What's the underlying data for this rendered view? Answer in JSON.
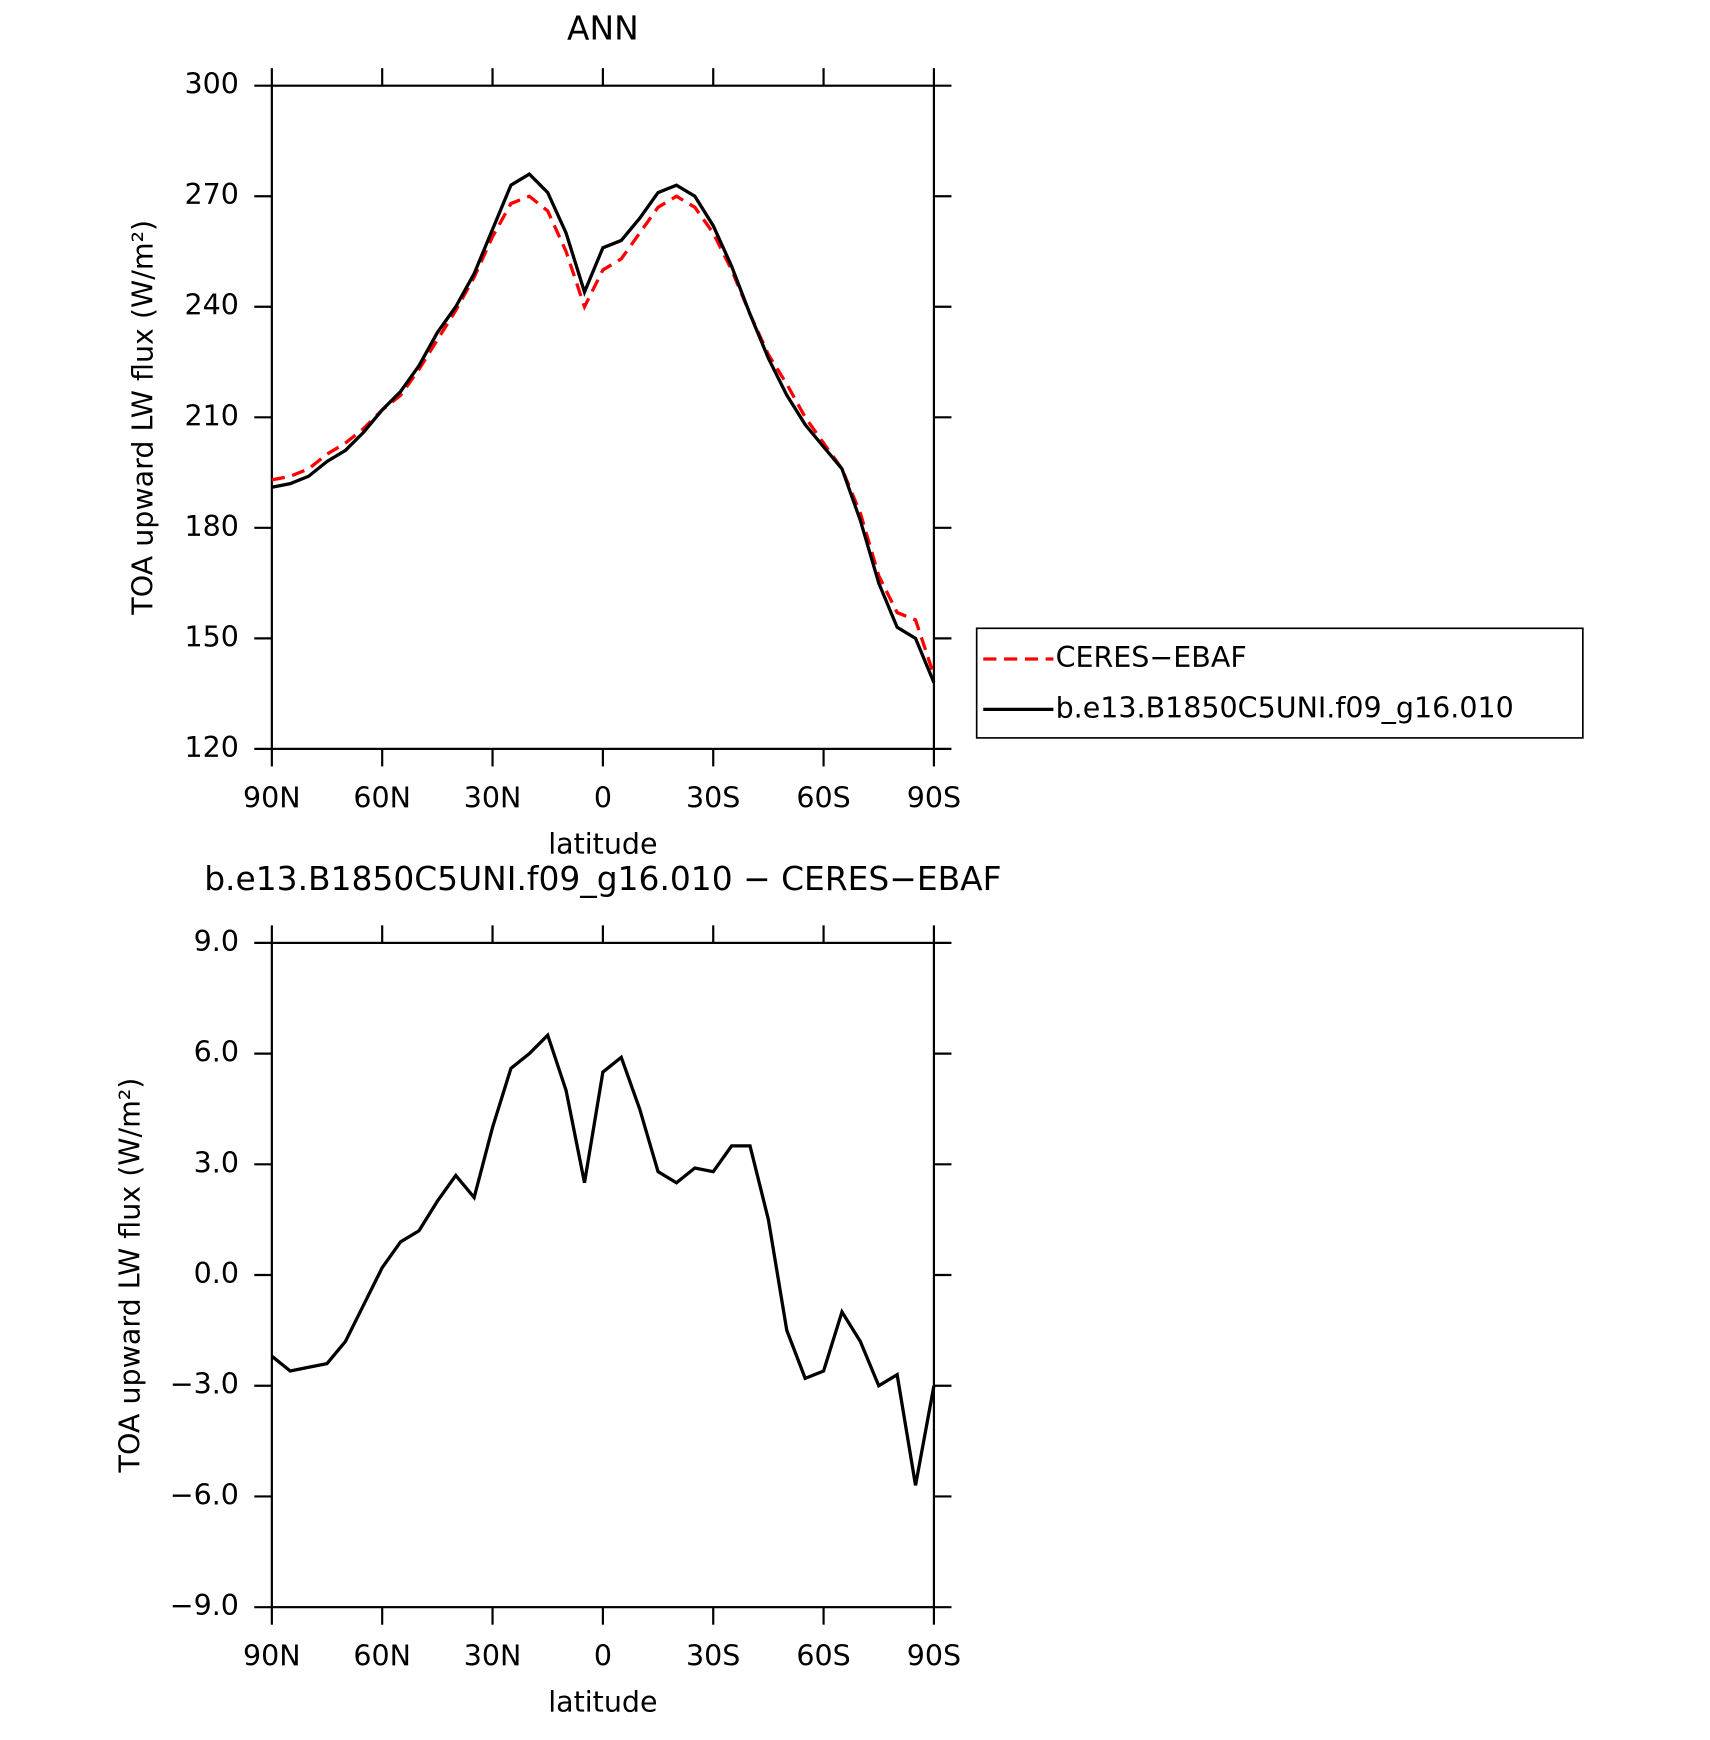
{
  "chart_data": [
    {
      "type": "line",
      "title": "ANN",
      "xlabel": "latitude",
      "ylabel": "TOA upward LW flux (W/m²)",
      "x": [
        90,
        85,
        80,
        75,
        70,
        65,
        60,
        55,
        50,
        45,
        40,
        35,
        30,
        25,
        20,
        15,
        10,
        5,
        0,
        -5,
        -10,
        -15,
        -20,
        -25,
        -30,
        -35,
        -40,
        -45,
        -50,
        -55,
        -60,
        -65,
        -70,
        -75,
        -80,
        -85,
        -90
      ],
      "series": [
        {
          "name": "CERES−EBAF",
          "color": "#ff0000",
          "linestyle": "dashed",
          "values": [
            193,
            194,
            196,
            200,
            203,
            207,
            212,
            216,
            223,
            231,
            239,
            248,
            259,
            268,
            270,
            266,
            255,
            240,
            250,
            253,
            260,
            267,
            270,
            267,
            260,
            250,
            238,
            227,
            219,
            210,
            203,
            196,
            184,
            167,
            157,
            155,
            140
          ]
        },
        {
          "name": "b.e13.B1850C5UNI.f09_g16.010",
          "color": "#000000",
          "linestyle": "solid",
          "values": [
            191,
            192,
            194,
            198,
            201,
            206,
            212,
            217,
            224,
            233,
            240,
            249,
            261,
            273,
            276,
            271,
            260,
            244,
            256,
            258,
            264,
            271,
            273,
            270,
            262,
            251,
            238,
            226,
            216,
            208,
            202,
            196,
            182,
            165,
            153,
            150,
            138
          ]
        }
      ],
      "xlim": [
        90,
        -90
      ],
      "xticks": [
        {
          "value": 90,
          "label": "90N"
        },
        {
          "value": 60,
          "label": "60N"
        },
        {
          "value": 30,
          "label": "30N"
        },
        0,
        {
          "value": -30,
          "label": "30S"
        },
        {
          "value": -60,
          "label": "60S"
        },
        {
          "value": -90,
          "label": "90S"
        }
      ],
      "ylim": [
        120,
        300
      ],
      "yticks": [
        120,
        150,
        180,
        210,
        240,
        270,
        300
      ],
      "legend": "outside right"
    },
    {
      "type": "line",
      "title": "b.e13.B1850C5UNI.f09_g16.010 − CERES−EBAF",
      "xlabel": "latitude",
      "ylabel": "TOA upward LW flux (W/m²)",
      "x": [
        90,
        85,
        80,
        75,
        70,
        65,
        60,
        55,
        50,
        45,
        40,
        35,
        30,
        25,
        20,
        15,
        10,
        5,
        0,
        -5,
        -10,
        -15,
        -20,
        -25,
        -30,
        -35,
        -40,
        -45,
        -50,
        -55,
        -60,
        -65,
        -70,
        -75,
        -80,
        -85,
        -90
      ],
      "series": [
        {
          "color": "#000000",
          "linestyle": "solid",
          "values": [
            -2.2,
            -2.6,
            -2.5,
            -2.4,
            -1.8,
            -0.8,
            0.2,
            0.9,
            1.2,
            2.0,
            2.7,
            2.1,
            4.0,
            5.6,
            6.0,
            6.5,
            5.0,
            2.5,
            5.5,
            5.9,
            4.5,
            2.8,
            2.5,
            2.9,
            2.8,
            3.5,
            3.5,
            1.5,
            -1.5,
            -2.8,
            -2.6,
            -1.0,
            -1.8,
            -3.0,
            -2.7,
            -5.7,
            -3.0
          ]
        }
      ],
      "xlim": [
        90,
        -90
      ],
      "xticks": [
        {
          "value": 90,
          "label": "90N"
        },
        {
          "value": 60,
          "label": "60N"
        },
        {
          "value": 30,
          "label": "30N"
        },
        0,
        {
          "value": -30,
          "label": "30S"
        },
        {
          "value": -60,
          "label": "60S"
        },
        {
          "value": -90,
          "label": "90S"
        }
      ],
      "ylim": [
        -9,
        9
      ],
      "yticks": [
        {
          "value": -9,
          "label": "−9.0"
        },
        {
          "value": -6,
          "label": "−6.0"
        },
        {
          "value": -3,
          "label": "−3.0"
        },
        {
          "value": 0,
          "label": "0.0"
        },
        {
          "value": 3,
          "label": "3.0"
        },
        {
          "value": 6,
          "label": "6.0"
        },
        {
          "value": 9,
          "label": "9.0"
        }
      ]
    }
  ]
}
